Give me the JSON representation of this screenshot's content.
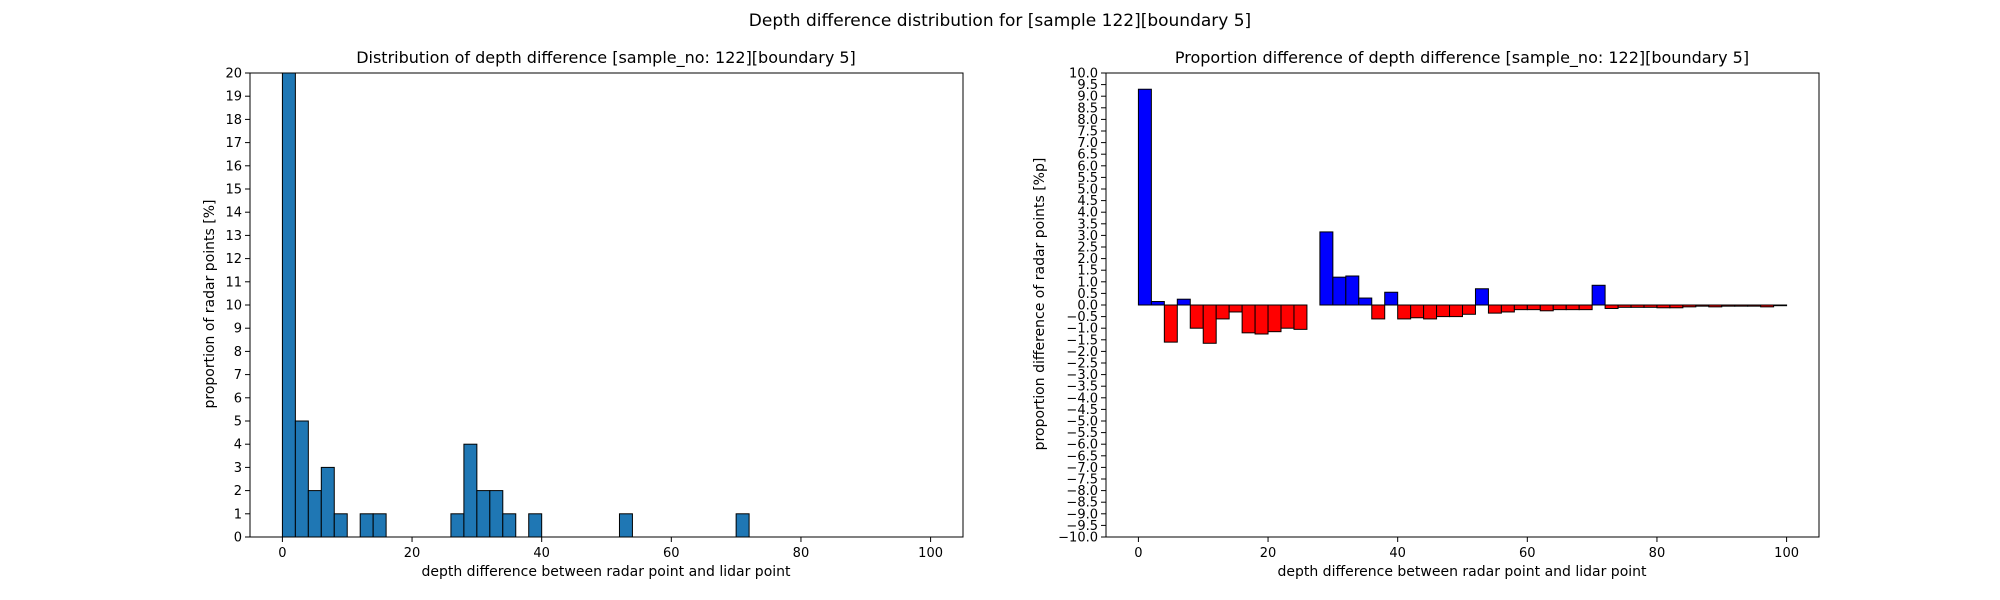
{
  "figure": {
    "title": "Depth difference distribution for [sample 122][boundary 5]"
  },
  "chart_data": [
    {
      "type": "bar",
      "title": "Distribution of depth difference [sample_no: 122][boundary 5]",
      "xlabel": "depth difference between radar point and lidar point",
      "ylabel": "proportion of radar points [%]",
      "xlim": [
        -5,
        105
      ],
      "ylim": [
        0,
        20
      ],
      "bin_width": 2,
      "xticks": [
        0,
        20,
        40,
        60,
        80,
        100
      ],
      "yticks": [
        0,
        1,
        2,
        3,
        4,
        5,
        6,
        7,
        8,
        9,
        10,
        11,
        12,
        13,
        14,
        15,
        16,
        17,
        18,
        19,
        20
      ],
      "bar_color": "#1f77b4",
      "bins": [
        0,
        2,
        4,
        6,
        8,
        12,
        14,
        26,
        28,
        30,
        32,
        34,
        38,
        52,
        70
      ],
      "values": [
        20,
        5,
        2,
        3,
        1,
        1,
        1,
        1,
        4,
        2,
        2,
        1,
        1,
        1,
        1
      ]
    },
    {
      "type": "bar",
      "title": "Proportion difference of depth difference [sample_no: 122][boundary 5]",
      "xlabel": "depth difference between radar point and lidar point",
      "ylabel": "proportion difference of radar points [%p]",
      "xlim": [
        -5,
        105
      ],
      "ylim": [
        -10,
        10
      ],
      "bin_width": 2,
      "xticks": [
        0,
        20,
        40,
        60,
        80,
        100
      ],
      "positive_color": "#0000ff",
      "negative_color": "#ff0000",
      "bins": [
        0,
        2,
        4,
        6,
        8,
        10,
        12,
        14,
        16,
        18,
        20,
        22,
        24,
        26,
        28,
        30,
        32,
        34,
        36,
        38,
        40,
        42,
        44,
        46,
        48,
        50,
        52,
        54,
        56,
        58,
        60,
        62,
        64,
        66,
        68,
        70,
        72,
        74,
        76,
        78,
        80,
        82,
        84,
        86,
        88,
        90,
        92,
        94,
        96,
        98
      ],
      "values": [
        9.3,
        0.15,
        -1.6,
        0.25,
        -1.0,
        -1.65,
        -0.6,
        -0.3,
        -1.2,
        -1.25,
        -1.15,
        -1.0,
        -1.05,
        0,
        3.15,
        1.2,
        1.25,
        0.3,
        -0.6,
        0.55,
        -0.6,
        -0.55,
        -0.6,
        -0.5,
        -0.5,
        -0.4,
        0.7,
        -0.35,
        -0.3,
        -0.2,
        -0.2,
        -0.25,
        -0.2,
        -0.2,
        -0.2,
        0.85,
        -0.15,
        -0.1,
        -0.1,
        -0.1,
        -0.12,
        -0.12,
        -0.08,
        -0.05,
        -0.08,
        -0.05,
        -0.05,
        -0.05,
        -0.08,
        -0.03
      ]
    }
  ]
}
